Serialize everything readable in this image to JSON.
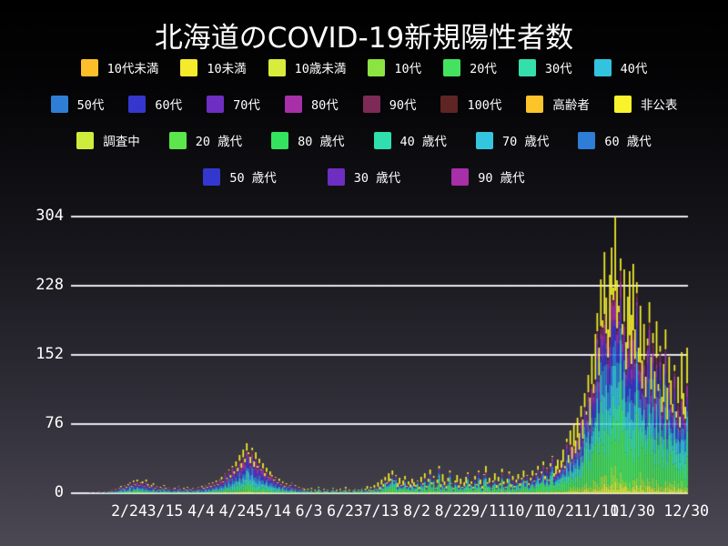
{
  "chart_data": {
    "type": "bar",
    "subtype": "stacked-daily-bars",
    "title": "北海道のCOVID-19新規陽性者数",
    "xlabel": "",
    "ylabel": "",
    "ylim": [
      0,
      304
    ],
    "y_ticks": [
      0,
      76,
      152,
      228,
      304
    ],
    "grid": "horizontal",
    "grid_color": "#e9e7ee",
    "legend_position": "top",
    "x_tick_labels": [
      "2/24",
      "3/15",
      "4/4",
      "4/24",
      "5/14",
      "6/3",
      "6/23",
      "7/13",
      "8/2",
      "8/22",
      "9/11",
      "10/1",
      "10/21",
      "11/10",
      "11/30",
      "12/30"
    ],
    "x_tick_day_index": [
      0,
      20,
      40,
      60,
      80,
      100,
      120,
      140,
      160,
      180,
      200,
      220,
      240,
      260,
      280,
      310
    ],
    "days_before_first_tick": 22,
    "daily_totals": [
      1,
      0,
      0,
      1,
      0,
      2,
      1,
      0,
      2,
      1,
      3,
      2,
      4,
      2,
      5,
      3,
      6,
      8,
      5,
      9,
      7,
      10,
      12,
      8,
      14,
      10,
      15,
      9,
      12,
      13,
      8,
      15,
      10,
      7,
      9,
      11,
      6,
      8,
      4,
      7,
      5,
      9,
      6,
      4,
      7,
      3,
      5,
      6,
      4,
      8,
      5,
      3,
      6,
      4,
      7,
      5,
      4,
      6,
      3,
      5,
      7,
      4,
      8,
      6,
      9,
      7,
      11,
      8,
      12,
      9,
      14,
      10,
      15,
      18,
      13,
      22,
      17,
      26,
      20,
      30,
      24,
      35,
      28,
      42,
      33,
      48,
      38,
      55,
      45,
      40,
      50,
      35,
      45,
      30,
      38,
      26,
      33,
      22,
      28,
      18,
      24,
      20,
      15,
      18,
      12,
      16,
      10,
      13,
      8,
      11,
      7,
      9,
      12,
      6,
      9,
      5,
      7,
      4,
      6,
      5,
      3,
      5,
      2,
      6,
      1,
      4,
      2,
      7,
      3,
      1,
      5,
      2,
      4,
      1,
      3,
      6,
      2,
      4,
      1,
      5,
      2,
      3,
      7,
      2,
      4,
      1,
      3,
      5,
      2,
      4,
      3,
      6,
      2,
      5,
      8,
      4,
      7,
      3,
      9,
      5,
      12,
      7,
      15,
      10,
      18,
      12,
      22,
      16,
      25,
      14,
      20,
      11,
      17,
      9,
      14,
      19,
      8,
      13,
      10,
      16,
      12,
      9,
      14,
      7,
      18,
      11,
      22,
      8,
      16,
      26,
      12,
      19,
      6,
      15,
      30,
      10,
      21,
      13,
      8,
      17,
      25,
      11,
      6,
      14,
      20,
      9,
      16,
      7,
      12,
      18,
      23,
      10,
      13,
      7,
      19,
      10,
      25,
      15,
      8,
      21,
      30,
      12,
      17,
      6,
      14,
      22,
      9,
      18,
      11,
      27,
      13,
      7,
      16,
      24,
      10,
      19,
      8,
      15,
      21,
      11,
      17,
      25,
      13,
      20,
      11,
      17,
      25,
      14,
      22,
      30,
      16,
      24,
      35,
      19,
      28,
      15,
      33,
      41,
      22,
      30,
      37,
      26,
      36,
      48,
      30,
      60,
      42,
      69,
      51,
      76,
      58,
      83,
      66,
      96,
      81,
      110,
      90,
      130,
      105,
      152,
      120,
      175,
      198,
      160,
      235,
      190,
      265,
      215,
      180,
      240,
      270,
      226,
      304,
      234,
      206,
      258,
      186,
      246,
      166,
      216,
      244,
      196,
      252,
      180,
      232,
      160,
      206,
      146,
      186,
      128,
      170,
      210,
      150,
      176,
      134,
      189,
      120,
      162,
      106,
      142,
      180,
      116,
      150,
      124,
      98,
      141,
      90,
      128,
      84,
      155,
      110,
      95,
      160
    ],
    "stack_order": [
      "10歳未満",
      "10代",
      "20代",
      "30代",
      "40代",
      "50代",
      "60代",
      "70代",
      "80代",
      "90代",
      "100代",
      "非公表"
    ],
    "stack_colors": [
      "#d9ec3c",
      "#8be442",
      "#44e35f",
      "#35dfac",
      "#32c3df",
      "#2e7dd7",
      "#3437ce",
      "#6e2ec1",
      "#a72fa8",
      "#7d2a56",
      "#5f2424",
      "#f8f32b"
    ],
    "era_mixes": [
      {
        "from_index": 0,
        "weights": [
          2,
          4,
          11,
          11,
          13,
          13,
          12,
          12,
          11,
          6,
          1,
          8
        ]
      },
      {
        "from_index": 119,
        "weights": [
          3,
          6,
          26,
          17,
          12,
          8,
          6,
          5,
          4,
          2,
          1,
          22
        ]
      },
      {
        "from_index": 242,
        "weights": [
          3,
          5,
          22,
          13,
          11,
          10,
          8,
          7,
          6,
          3,
          1,
          16
        ]
      }
    ],
    "legend_rows": [
      [
        {
          "label": "10代未満",
          "color": "#fcbf29"
        },
        {
          "label": "10未満",
          "color": "#f6eb2a"
        },
        {
          "label": "10歳未満",
          "color": "#d9ec3c"
        },
        {
          "label": "10代",
          "color": "#8be442"
        },
        {
          "label": "20代",
          "color": "#44e35f"
        },
        {
          "label": "30代",
          "color": "#35dfac"
        },
        {
          "label": "40代",
          "color": "#32c3df"
        }
      ],
      [
        {
          "label": "50代",
          "color": "#2e7dd7"
        },
        {
          "label": "60代",
          "color": "#3437ce"
        },
        {
          "label": "70代",
          "color": "#6e2ec1"
        },
        {
          "label": "80代",
          "color": "#a72fa8"
        },
        {
          "label": "90代",
          "color": "#7d2a56"
        },
        {
          "label": "100代",
          "color": "#5f2424"
        },
        {
          "label": "高齢者",
          "color": "#fcc32b"
        },
        {
          "label": "非公表",
          "color": "#f8f32b"
        }
      ],
      [
        {
          "label": "調査中",
          "color": "#ceec3b"
        },
        {
          "label": "20 歳代",
          "color": "#5be74b"
        },
        {
          "label": "80 歳代",
          "color": "#35e25f"
        },
        {
          "label": "40 歳代",
          "color": "#2fdfae"
        },
        {
          "label": "70 歳代",
          "color": "#35c6df"
        },
        {
          "label": "60 歳代",
          "color": "#2e7dd7"
        }
      ],
      [
        {
          "label": "50 歳代",
          "color": "#3437ce"
        },
        {
          "label": "30 歳代",
          "color": "#6e2ec1"
        },
        {
          "label": "90 歳代",
          "color": "#a72fa8"
        }
      ]
    ]
  }
}
